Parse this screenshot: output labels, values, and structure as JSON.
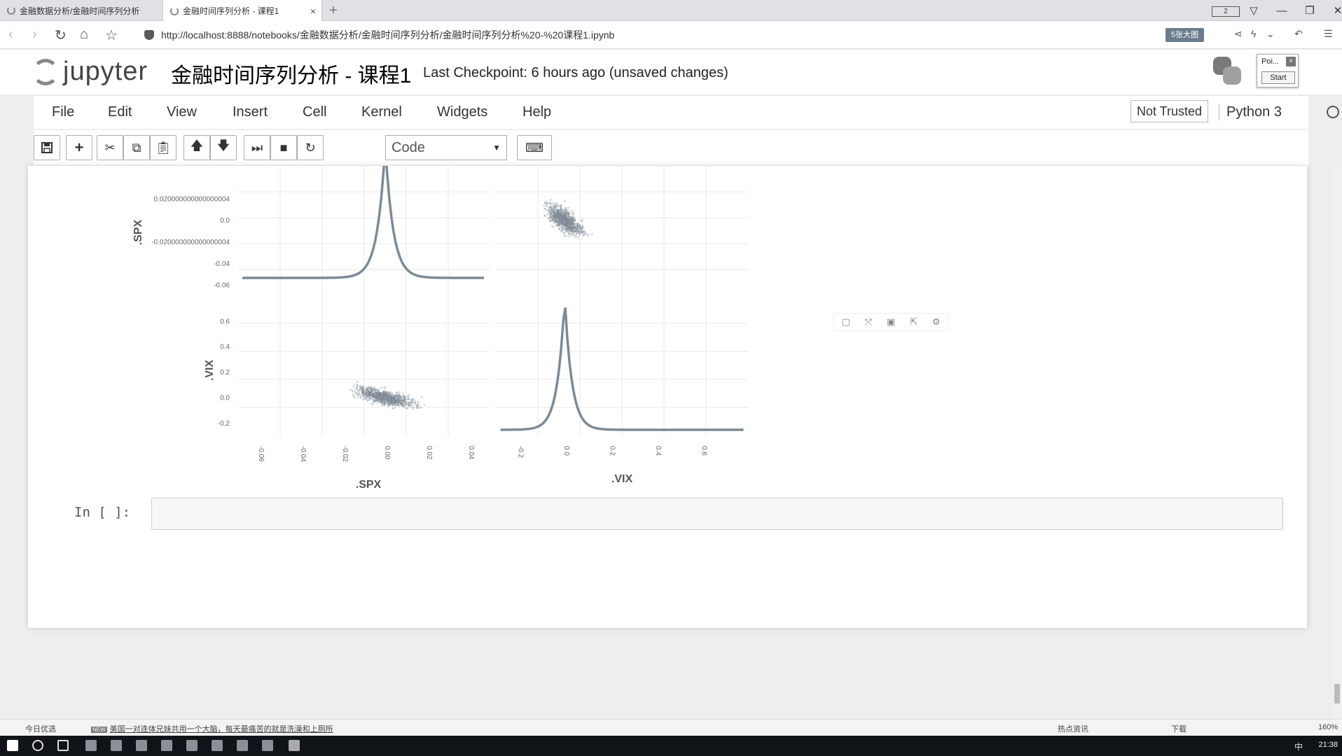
{
  "browser": {
    "tabs": [
      {
        "title": "金融数据分析/金融时间序列分析"
      },
      {
        "title": "金融时间序列分析 - 课程1"
      }
    ],
    "new_tab": "+",
    "tab_count_badge": "2",
    "url": "http://localhost:8888/notebooks/金融数据分析/金融时间序列分析/金融时间序列分析%20-%20课程1.ipynb",
    "extension_label": "5张大图"
  },
  "jupyter": {
    "logo_text": "jupyter",
    "notebook_title": "金融时间序列分析 - 课程1",
    "checkpoint": "Last Checkpoint: 6 hours ago (unsaved changes)",
    "popup": {
      "title": "Poi...",
      "close": "×",
      "button": "Start"
    },
    "menu": [
      "File",
      "Edit",
      "View",
      "Insert",
      "Cell",
      "Kernel",
      "Widgets",
      "Help"
    ],
    "trusted": "Not Trusted",
    "kernel": "Python 3",
    "toolbar": {
      "cell_type": "Code"
    }
  },
  "chart_data": {
    "type": "scatter",
    "description_kind": "scatter-matrix with kde diagonals",
    "variables": [
      ".SPX",
      ".VIX"
    ],
    "x_axis_titles": [
      ".SPX",
      ".VIX"
    ],
    "y_axis_titles": [
      ".SPX",
      ".VIX"
    ],
    "spx_y_ticks": [
      "0.020000000000000004",
      "0.0",
      "-0.020000000000000004",
      "-0.04",
      "-0.06"
    ],
    "vix_y_ticks": [
      "0.6",
      "0.4",
      "0.2",
      "0.0",
      "-0.2"
    ],
    "spx_x_ticks": [
      "-0.06",
      "-0.04",
      "-0.02",
      "0.00",
      "0.02",
      "0.04"
    ],
    "vix_x_ticks": [
      "-0.2",
      "0.0",
      "0.2",
      "0.4",
      "0.6"
    ],
    "spx_range": [
      -0.07,
      0.05
    ],
    "vix_range": [
      -0.3,
      0.8
    ],
    "marker_color": "#7d8a96",
    "correlation": "negative"
  },
  "input_cell": {
    "prompt": "In  [ ]:"
  },
  "news": {
    "left": "今日优选",
    "headline": "美国一对连体兄妹共用一个大脑，每天最痛苦的就是洗澡和上厕所",
    "right1": "热点资讯",
    "right2": "下载",
    "zoom": "160%"
  },
  "taskbar": {
    "ime": "中",
    "clock": "21:38"
  }
}
